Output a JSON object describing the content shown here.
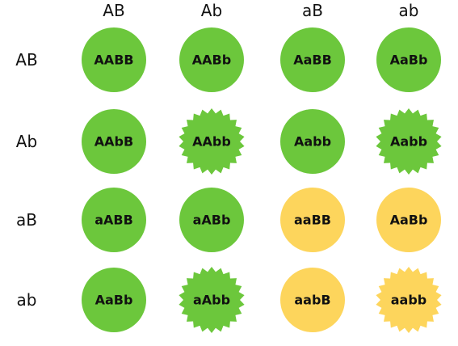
{
  "colors": {
    "green": "#6cc73c",
    "yellow": "#fdd55c",
    "text": "#111111"
  },
  "column_headers": [
    "AB",
    "Ab",
    "aB",
    "ab"
  ],
  "row_headers": [
    "AB",
    "Ab",
    "aB",
    "ab"
  ],
  "cells": [
    [
      {
        "genotype": "AABB",
        "color": "green",
        "shape": "circle"
      },
      {
        "genotype": "AABb",
        "color": "green",
        "shape": "circle"
      },
      {
        "genotype": "AaBB",
        "color": "green",
        "shape": "circle"
      },
      {
        "genotype": "AaBb",
        "color": "green",
        "shape": "circle"
      }
    ],
    [
      {
        "genotype": "AAbB",
        "color": "green",
        "shape": "circle"
      },
      {
        "genotype": "AAbb",
        "color": "green",
        "shape": "starburst"
      },
      {
        "genotype": "Aabb",
        "color": "green",
        "shape": "circle"
      },
      {
        "genotype": "Aabb",
        "color": "green",
        "shape": "starburst"
      }
    ],
    [
      {
        "genotype": "aABB",
        "color": "green",
        "shape": "circle"
      },
      {
        "genotype": "aABb",
        "color": "green",
        "shape": "circle"
      },
      {
        "genotype": "aaBB",
        "color": "yellow",
        "shape": "circle"
      },
      {
        "genotype": "AaBb",
        "color": "yellow",
        "shape": "circle"
      }
    ],
    [
      {
        "genotype": "AaBb",
        "color": "green",
        "shape": "circle"
      },
      {
        "genotype": "aAbb",
        "color": "green",
        "shape": "starburst"
      },
      {
        "genotype": "aabB",
        "color": "yellow",
        "shape": "circle"
      },
      {
        "genotype": "aabb",
        "color": "yellow",
        "shape": "starburst"
      }
    ]
  ]
}
